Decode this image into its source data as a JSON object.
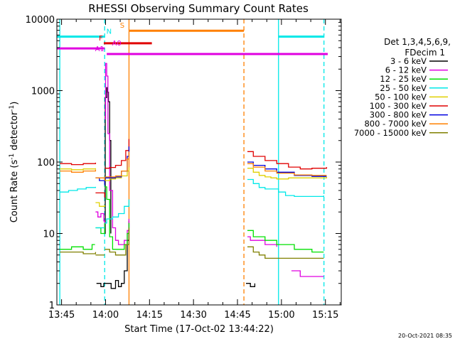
{
  "chart_data": {
    "type": "line",
    "title": "RHESSI Observing Summary Count Rates",
    "xlabel": "Start Time (17-Oct-02 13:44:22)",
    "ylabel_main": "Count Rate (s",
    "ylabel_sup1": "-1",
    "ylabel_mid": " detector",
    "ylabel_sup2": "-1",
    "ylabel_end": ")",
    "x_range_min": [
      -1,
      96
    ],
    "y_range_log": [
      1,
      10000
    ],
    "y_scale": "log",
    "grid": false,
    "footer_timestamp": "20-Oct-2021 08:35",
    "legend": {
      "header1": "Det 1,3,4,5,6,9,",
      "header2": "FDecim 1",
      "entries": [
        {
          "label": "3 - 6 keV",
          "color": "#000000"
        },
        {
          "label": "6 - 12 keV",
          "color": "#e000e0"
        },
        {
          "label": "12 - 25 keV",
          "color": "#00e000"
        },
        {
          "label": "25 - 50 keV",
          "color": "#00e8e8"
        },
        {
          "label": "50 - 100 keV",
          "color": "#e0d000"
        },
        {
          "label": "100 - 300 keV",
          "color": "#e00000"
        },
        {
          "label": "300 - 800 keV",
          "color": "#0000e0"
        },
        {
          "label": "800 - 7000 keV",
          "color": "#ff8000"
        },
        {
          "label": "7000 - 15000 keV",
          "color": "#808000"
        }
      ]
    },
    "x_ticks": [
      {
        "t": 0.6,
        "label": "13:45"
      },
      {
        "t": 15.6,
        "label": "14:00"
      },
      {
        "t": 30.6,
        "label": "14:15"
      },
      {
        "t": 45.6,
        "label": "14:30"
      },
      {
        "t": 60.6,
        "label": "14:45"
      },
      {
        "t": 75.6,
        "label": "15:00"
      },
      {
        "t": 90.6,
        "label": "15:15"
      }
    ],
    "y_ticks": [
      {
        "v": 1,
        "label": "1"
      },
      {
        "v": 10,
        "label": "10"
      },
      {
        "v": 100,
        "label": "100"
      },
      {
        "v": 1000,
        "label": "1000"
      },
      {
        "v": 10000,
        "label": "10000"
      }
    ],
    "vertical_markers": [
      {
        "t": 0,
        "color": "#00e8e8",
        "style": "solid"
      },
      {
        "t": 15.3,
        "color": "#00e8e8",
        "style": "dashed"
      },
      {
        "t": 23.6,
        "color": "#ff8000",
        "style": "solid"
      },
      {
        "t": 62.8,
        "color": "#ff8000",
        "style": "dashed"
      },
      {
        "t": 74.6,
        "color": "#00e8e8",
        "style": "solid"
      },
      {
        "t": 90.1,
        "color": "#00e8e8",
        "style": "dashed"
      }
    ],
    "flag_bars": [
      {
        "label": "N",
        "color": "#00e8e8",
        "value": 5700,
        "segments": [
          [
            -1,
            15.3
          ],
          [
            74.6,
            90.1
          ]
        ],
        "label_t": 16.8
      },
      {
        "label": "S",
        "color": "#ff8000",
        "value": 6900,
        "segments": [
          [
            23.6,
            62.8
          ]
        ],
        "label_t": 21.3
      },
      {
        "label": "F",
        "color": "#e00000",
        "value": 4600,
        "segments": [
          [
            15.0,
            31.4
          ]
        ],
        "label_t": 14.0
      },
      {
        "label": "A0",
        "color": "#e000e0",
        "value": 3900,
        "segments": [
          [
            -1,
            15.3
          ]
        ],
        "label_t": 19.4
      },
      {
        "label": "A1",
        "color": "#e000e0",
        "value": 3250,
        "segments": [
          [
            16.0,
            91.4
          ]
        ],
        "label_t": 13.6
      }
    ],
    "series": [
      {
        "name": "3 - 6 keV",
        "color": "#000000",
        "segments": [
          {
            "t": [
              15.3,
              15.5,
              16.0,
              16.3,
              16.6,
              17.0,
              17.4
            ],
            "y": [
              10,
              800,
              1100,
              950,
              700,
              200,
              10
            ]
          },
          {
            "t": [
              12.5,
              14.0,
              15.0,
              17.5,
              19.0,
              20.0,
              21.0,
              22.0,
              23.0,
              23.6
            ],
            "y": [
              2,
              1.8,
              2,
              1.7,
              2.2,
              1.8,
              2,
              3,
              8,
              15
            ]
          },
          {
            "t": [
              63.5,
              65.0,
              66.5
            ],
            "y": [
              2,
              1.8,
              2
            ]
          }
        ]
      },
      {
        "name": "6 - 12 keV",
        "color": "#e000e0",
        "segments": [
          {
            "t": [
              12.2,
              13.0,
              14.0,
              15.0,
              15.3
            ],
            "y": [
              20,
              17,
              19,
              15,
              12
            ]
          },
          {
            "t": [
              15.3,
              15.6,
              16.0,
              16.4,
              17.0,
              18.0,
              19.0,
              20.0,
              21.0,
              22.0,
              23.0,
              23.6
            ],
            "y": [
              400,
              2400,
              1600,
              250,
              40,
              12,
              8,
              7,
              7,
              8,
              11,
              16
            ]
          },
          {
            "t": [
              64.0,
              65.0,
              67.0,
              70.0,
              74.0
            ],
            "y": [
              9,
              8,
              8,
              7,
              6.5
            ]
          },
          {
            "t": [
              79.0,
              82.0,
              86.0,
              90.0
            ],
            "y": [
              3,
              2.5,
              2.5,
              2.5
            ]
          }
        ]
      },
      {
        "name": "12 - 25 keV",
        "color": "#00e000",
        "segments": [
          {
            "t": [
              0,
              4,
              8,
              11,
              12.0
            ],
            "y": [
              6,
              6.5,
              6,
              7,
              7
            ]
          },
          {
            "t": [
              12.2,
              14.0,
              15.3
            ],
            "y": [
              12,
              10,
              14
            ]
          },
          {
            "t": [
              15.3,
              16.0,
              17.0,
              18.0,
              20.0,
              22.0,
              23.0,
              23.6
            ],
            "y": [
              45,
              30,
              9,
              6,
              6,
              7,
              10,
              14
            ]
          },
          {
            "t": [
              64.0,
              66.0,
              70.0,
              74.0,
              80.0,
              86.0,
              90.0
            ],
            "y": [
              11,
              9,
              8,
              7,
              6,
              5.5,
              5.5
            ]
          }
        ]
      },
      {
        "name": "25 - 50 keV",
        "color": "#00e8e8",
        "segments": [
          {
            "t": [
              0,
              3,
              6,
              9,
              12.2
            ],
            "y": [
              38,
              40,
              42,
              44,
              45
            ]
          },
          {
            "t": [
              12.2,
              15.3
            ],
            "y": [
              12,
              12
            ]
          },
          {
            "t": [
              15.3,
              16.0,
              18.0,
              20.0,
              22.0,
              23.6
            ],
            "y": [
              14,
              16,
              17,
              19,
              24,
              30
            ]
          },
          {
            "t": [
              64.0,
              66.0,
              68.0,
              70.0,
              72.0,
              74.6,
              77.0,
              80.0,
              85.0,
              90.0
            ],
            "y": [
              57,
              50,
              44,
              42,
              42,
              38,
              34,
              33,
              33,
              34
            ]
          }
        ]
      },
      {
        "name": "50 - 100 keV",
        "color": "#e0d000",
        "segments": [
          {
            "t": [
              0,
              4,
              8,
              12.2
            ],
            "y": [
              80,
              78,
              80,
              82
            ]
          },
          {
            "t": [
              12.2,
              13.5,
              15.3
            ],
            "y": [
              27,
              24,
              25
            ]
          },
          {
            "t": [
              15.3,
              17.0,
              19.0,
              21.0,
              23.0,
              23.6
            ],
            "y": [
              55,
              58,
              60,
              64,
              75,
              85
            ]
          },
          {
            "t": [
              64.0,
              66.0,
              68.0,
              70.0,
              72.0,
              74.0,
              78.0,
              85.0,
              91.0
            ],
            "y": [
              82,
              72,
              65,
              62,
              60,
              58,
              60,
              60,
              62
            ]
          }
        ]
      },
      {
        "name": "100 - 300 keV",
        "color": "#e00000",
        "segments": [
          {
            "t": [
              0,
              4,
              8,
              12.2
            ],
            "y": [
              95,
              92,
              95,
              98
            ]
          },
          {
            "t": [
              12.2,
              15.3
            ],
            "y": [
              37,
              32
            ]
          },
          {
            "t": [
              15.3,
              17.0,
              19.0,
              21.0,
              22.5,
              23.6
            ],
            "y": [
              82,
              84,
              90,
              105,
              145,
              210
            ]
          },
          {
            "t": [
              64.0,
              66.0,
              70.0,
              74.0,
              78.0,
              82.0,
              86.0,
              91.0
            ],
            "y": [
              140,
              120,
              105,
              95,
              85,
              80,
              82,
              85
            ]
          }
        ]
      },
      {
        "name": "300 - 800 keV",
        "color": "#0000e0",
        "segments": [
          {
            "t": [
              12.2,
              13.5,
              15.3
            ],
            "y": [
              60,
              55,
              48
            ]
          },
          {
            "t": [
              15.3,
              17.0,
              19.0,
              21.0,
              23.0,
              23.6
            ],
            "y": [
              60,
              60,
              62,
              75,
              120,
              165
            ]
          },
          {
            "t": [
              64.0,
              66.0,
              70.0,
              74.0,
              80.0,
              86.0,
              91.0
            ],
            "y": [
              100,
              90,
              80,
              72,
              65,
              63,
              63
            ]
          }
        ]
      },
      {
        "name": "800 - 7000 keV",
        "color": "#ff8000",
        "segments": [
          {
            "t": [
              0,
              4,
              8,
              12.2
            ],
            "y": [
              75,
              72,
              75,
              78
            ]
          },
          {
            "t": [
              12.2,
              15.3
            ],
            "y": [
              60,
              55
            ]
          },
          {
            "t": [
              15.3,
              17.0,
              19.0,
              21.0,
              23.0,
              23.6
            ],
            "y": [
              62,
              62,
              64,
              75,
              110,
              140
            ]
          },
          {
            "t": [
              64.0,
              66.0,
              70.0,
              74.0,
              80.0,
              86.0,
              91.0
            ],
            "y": [
              95,
              85,
              75,
              70,
              66,
              65,
              65
            ]
          }
        ]
      },
      {
        "name": "7000 - 15000 keV",
        "color": "#808000",
        "segments": [
          {
            "t": [
              0,
              4,
              8,
              12.2
            ],
            "y": [
              5.5,
              5.5,
              5.2,
              5.5
            ]
          },
          {
            "t": [
              12.2,
              15.3
            ],
            "y": [
              5,
              5
            ]
          },
          {
            "t": [
              15.3,
              17.0,
              19.0,
              21.0,
              22.5,
              23.6
            ],
            "y": [
              6,
              5.5,
              5,
              5,
              7,
              12
            ]
          },
          {
            "t": [
              64.0,
              66.0,
              68.0,
              70.0,
              72.0,
              74.0,
              78.0,
              84.0,
              90.0
            ],
            "y": [
              6.5,
              5.5,
              5,
              4.5,
              4.5,
              4.5,
              4.5,
              4.5,
              4.5
            ]
          }
        ]
      }
    ]
  }
}
